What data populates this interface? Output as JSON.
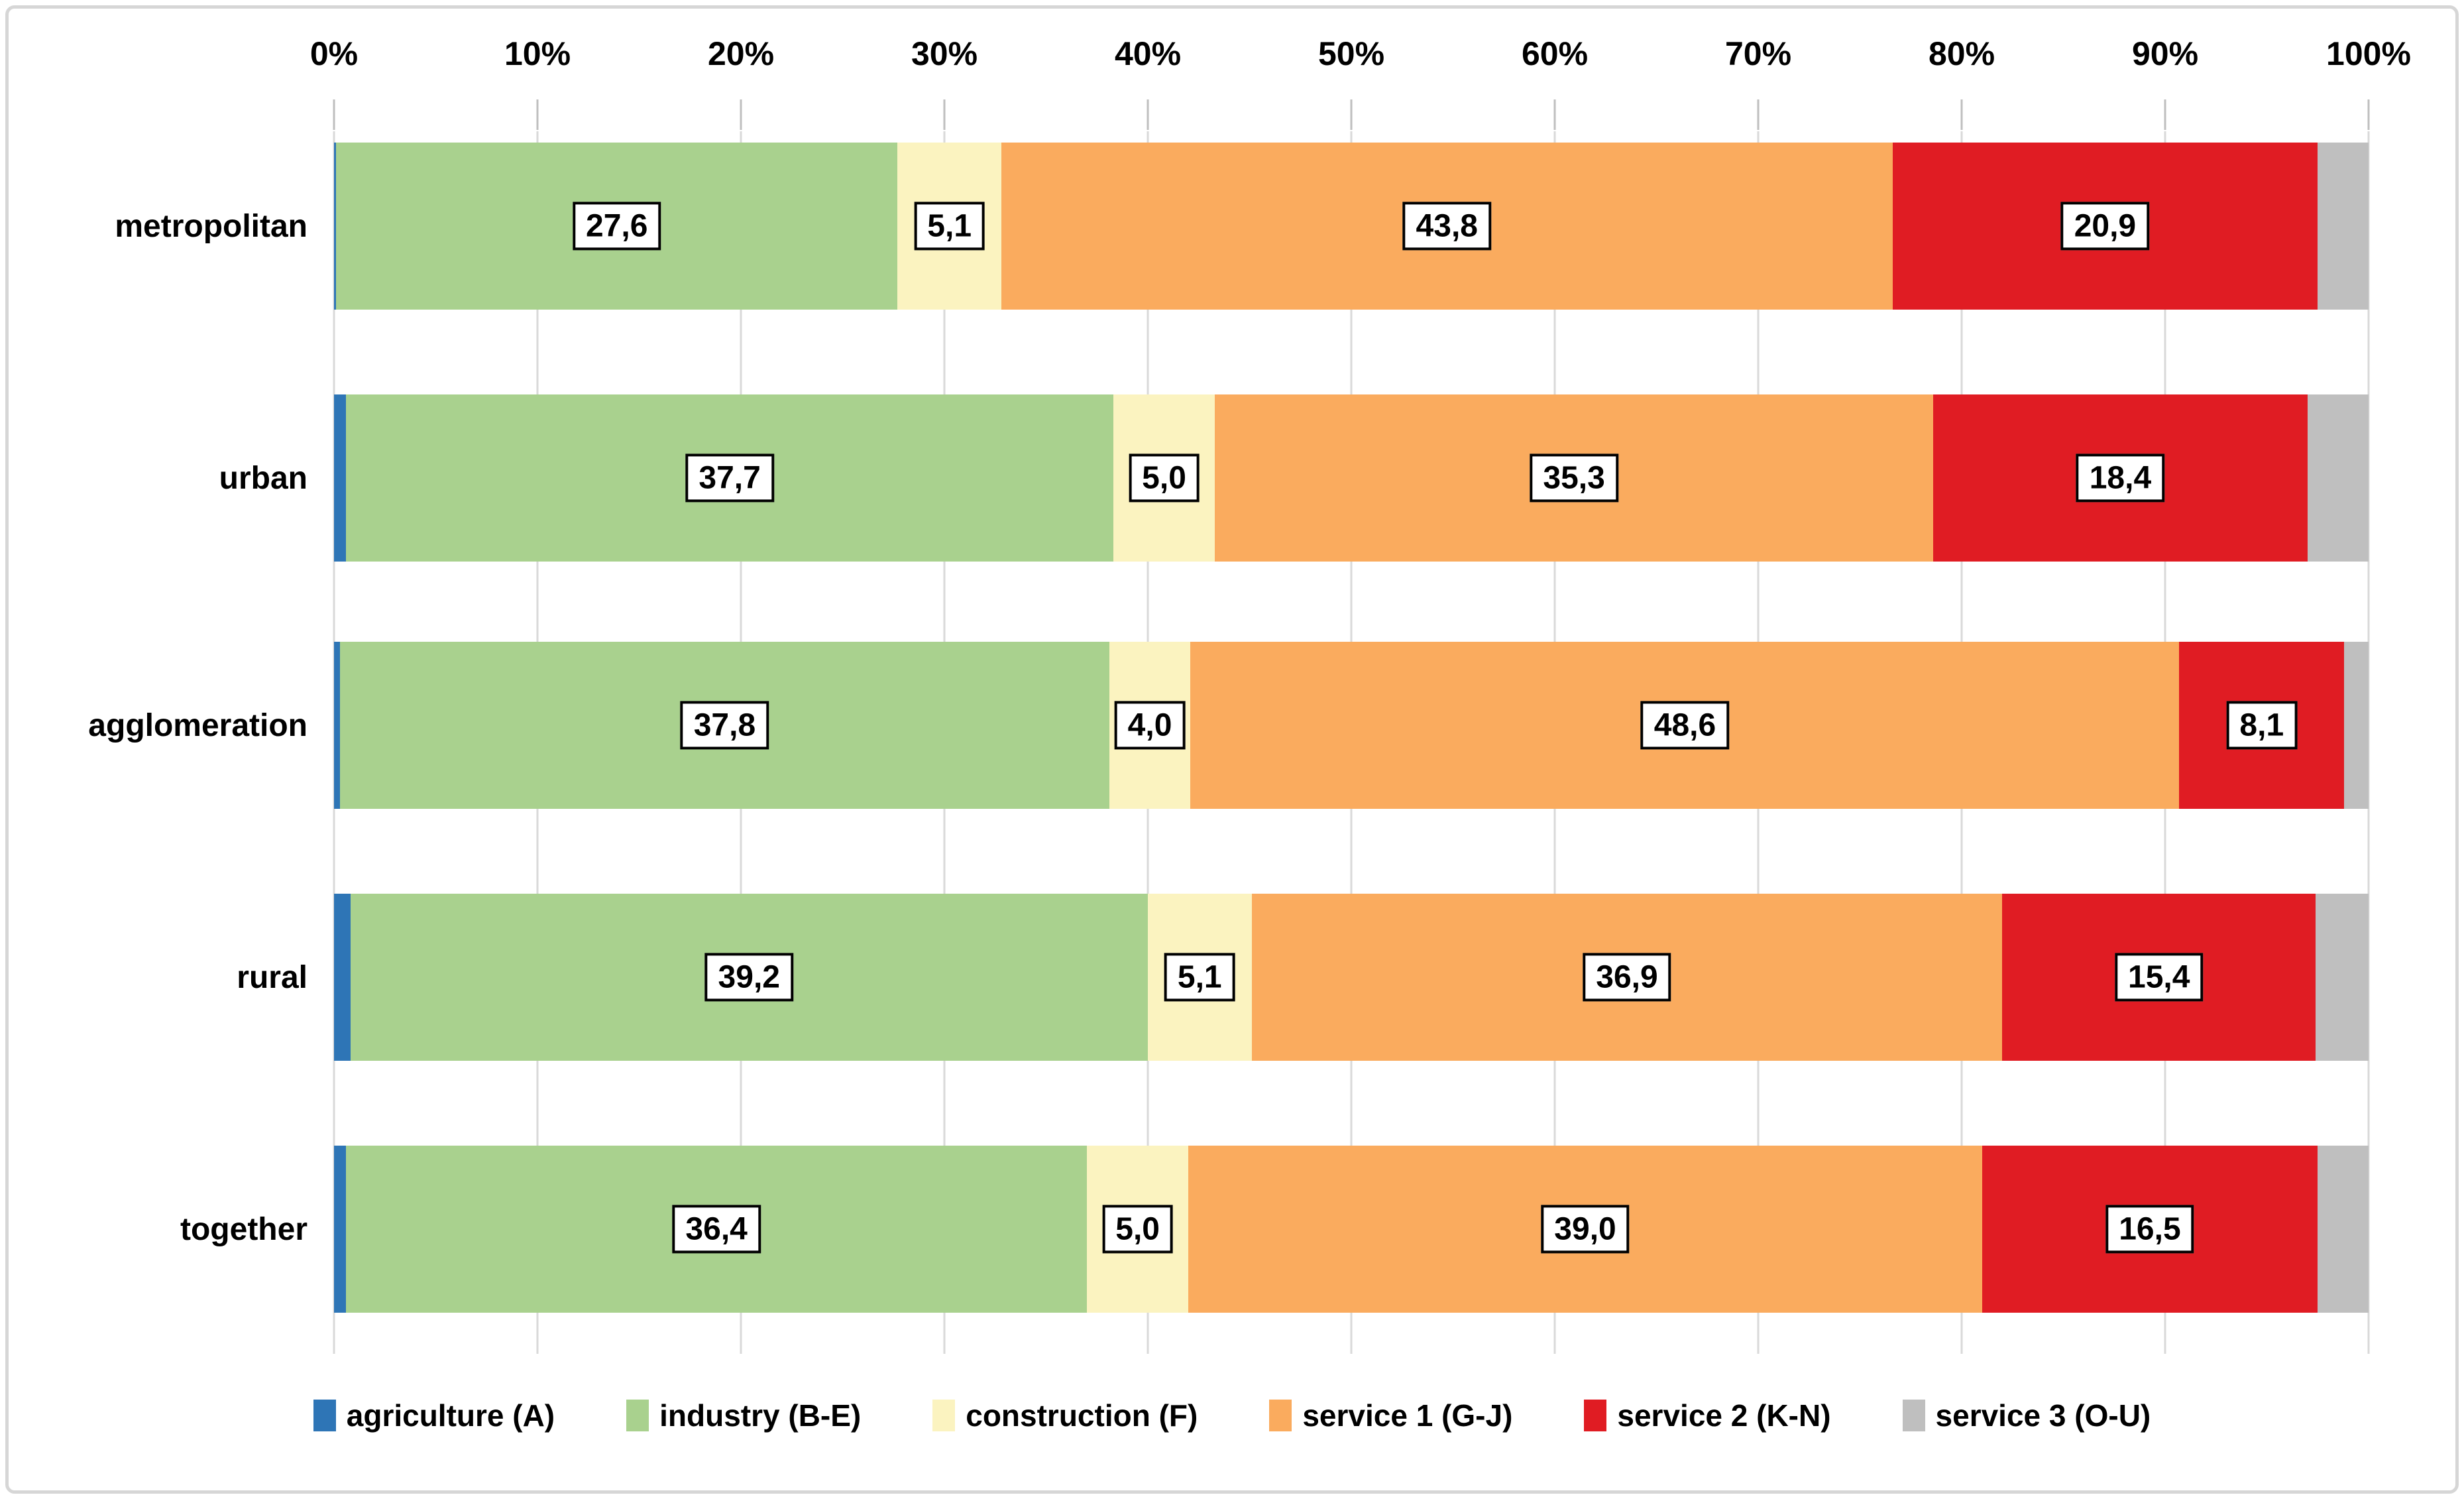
{
  "chart_data": {
    "type": "bar",
    "orientation": "horizontal",
    "stacked": true,
    "unit": "%",
    "title": "",
    "categories": [
      "metropolitan",
      "urban",
      "agglomeration",
      "rural",
      "together"
    ],
    "series": [
      {
        "name": "agriculture (A)",
        "color": "#2e75b6",
        "labeled": false,
        "values": [
          0.1,
          0.6,
          0.3,
          0.8,
          0.6
        ]
      },
      {
        "name": "industry (B-E)",
        "color": "#a9d18e",
        "labeled": true,
        "values": [
          27.6,
          37.7,
          37.8,
          39.2,
          36.4
        ]
      },
      {
        "name": "construction (F)",
        "color": "#fbf3c0",
        "labeled": true,
        "values": [
          5.1,
          5.0,
          4.0,
          5.1,
          5.0
        ]
      },
      {
        "name": "service 1 (G-J)",
        "color": "#faab5e",
        "labeled": true,
        "values": [
          43.8,
          35.3,
          48.6,
          36.9,
          39.0
        ]
      },
      {
        "name": "service 2 (K-N)",
        "color": "#e01c23",
        "labeled": true,
        "values": [
          20.9,
          18.4,
          8.1,
          15.4,
          16.5
        ]
      },
      {
        "name": "service 3 (O-U)",
        "color": "#bfbfbf",
        "labeled": false,
        "values": [
          2.5,
          3.0,
          1.2,
          2.6,
          2.5
        ]
      }
    ],
    "data_label_decimal_separator": ",",
    "x_axis": {
      "position": "top",
      "min": 0,
      "max": 100,
      "ticks": [
        "0%",
        "10%",
        "20%",
        "30%",
        "40%",
        "50%",
        "60%",
        "70%",
        "80%",
        "90%",
        "100%"
      ]
    },
    "legend": {
      "position": "bottom",
      "entries": [
        "agriculture (A)",
        "industry (B-E)",
        "construction (F)",
        "service 1 (G-J)",
        "service 2 (K-N)",
        "service 3 (O-U)"
      ]
    },
    "grid": true
  },
  "styles": {
    "gridline_color": "#d9d9d9",
    "tick_color": "#bfbfbf",
    "frame_border_color": "#d6d6d6",
    "data_label_box_bg": "#ffffff",
    "data_label_box_border": "#000000",
    "text_color": "#000000",
    "background_color": "#ffffff"
  }
}
